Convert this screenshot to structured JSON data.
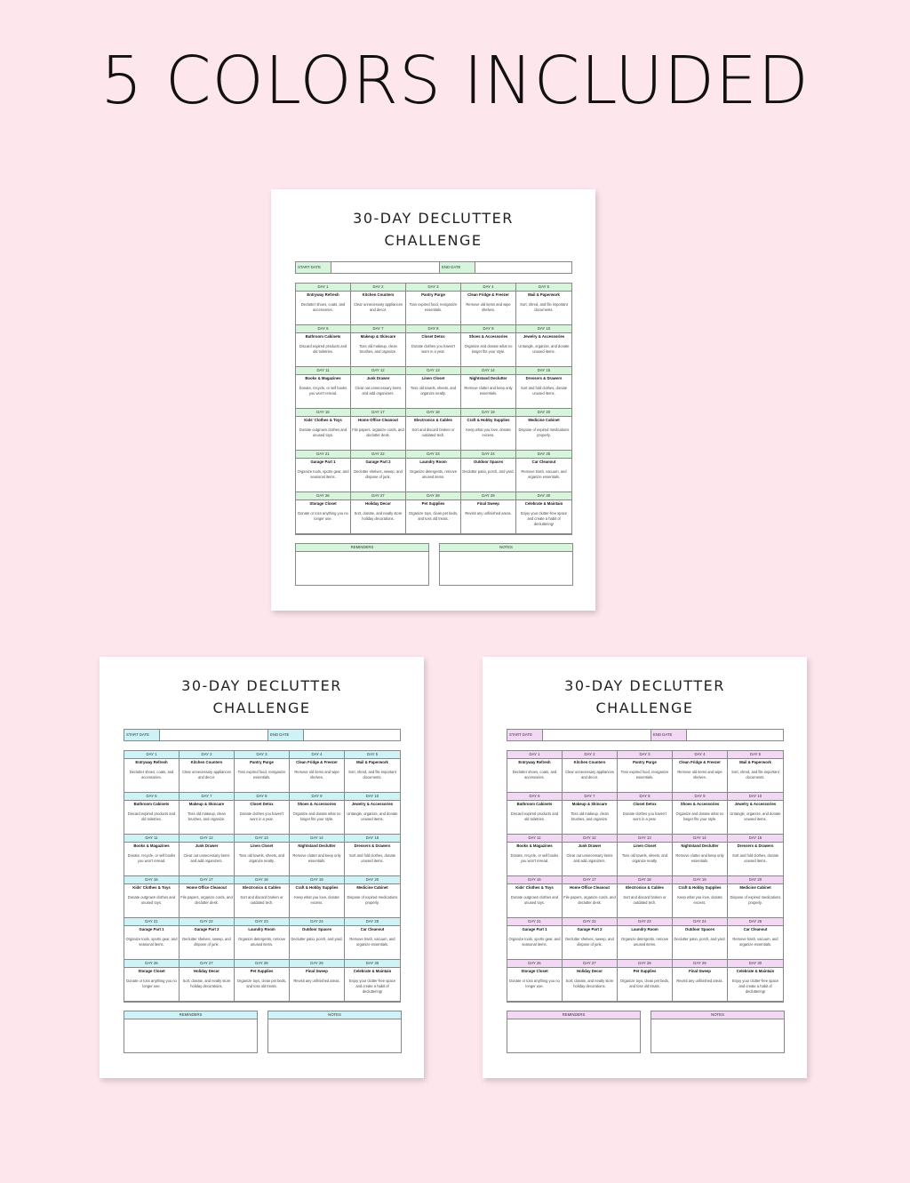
{
  "headline": "5 COLORS INCLUDED",
  "planner": {
    "title_line1": "30-DAY DECLUTTER",
    "title_line2": "CHALLENGE",
    "start_label": "START DATE",
    "end_label": "END DATE",
    "reminders_label": "REMINDERS",
    "notes_label": "NOTES",
    "days": [
      {
        "day": "DAY 1",
        "title": "Entryway Refresh",
        "desc": "Declutter shoes, coats, and accessories."
      },
      {
        "day": "DAY 2",
        "title": "Kitchen Counters",
        "desc": "Clear unnecessary appliances and decor."
      },
      {
        "day": "DAY 3",
        "title": "Pantry Purge",
        "desc": "Toss expired food, reorganize essentials."
      },
      {
        "day": "DAY 4",
        "title": "Clean Fridge & Freezer",
        "desc": "Remove old items and wipe shelves."
      },
      {
        "day": "DAY 5",
        "title": "Mail & Paperwork",
        "desc": "Sort, shred, and file important documents."
      },
      {
        "day": "DAY 6",
        "title": "Bathroom Cabinets",
        "desc": "Discard expired products and old toiletries."
      },
      {
        "day": "DAY 7",
        "title": "Makeup & Skincare",
        "desc": "Toss old makeup, clean brushes, and organize."
      },
      {
        "day": "DAY 8",
        "title": "Closet Detox",
        "desc": "Donate clothes you haven't worn in a year."
      },
      {
        "day": "DAY 9",
        "title": "Shoes & Accessories",
        "desc": "Organize and donate what no longer fits your style."
      },
      {
        "day": "DAY 10",
        "title": "Jewelry & Accessories",
        "desc": "Untangle, organize, and donate unused items."
      },
      {
        "day": "DAY 11",
        "title": "Books & Magazines",
        "desc": "Donate, recycle, or sell books you won't reread."
      },
      {
        "day": "DAY 12",
        "title": "Junk Drawer",
        "desc": "Clear out unnecessary items and add organizers."
      },
      {
        "day": "DAY 13",
        "title": "Linen Closet",
        "desc": "Toss old towels, sheets, and organize neatly."
      },
      {
        "day": "DAY 14",
        "title": "Nightstand Declutter",
        "desc": "Remove clutter and keep only essentials."
      },
      {
        "day": "DAY 15",
        "title": "Dressers & Drawers",
        "desc": "Sort and fold clothes, donate unused items."
      },
      {
        "day": "DAY 16",
        "title": "Kids' Clothes & Toys",
        "desc": "Donate outgrown clothes and unused toys."
      },
      {
        "day": "DAY 17",
        "title": "Home Office Cleanout",
        "desc": "File papers, organize cords, and declutter desk."
      },
      {
        "day": "DAY 18",
        "title": "Electronics & Cables",
        "desc": "Sort and discard broken or outdated tech."
      },
      {
        "day": "DAY 19",
        "title": "Craft & Hobby Supplies",
        "desc": "Keep what you love, donate excess."
      },
      {
        "day": "DAY 20",
        "title": "Medicine Cabinet",
        "desc": "Dispose of expired medications properly."
      },
      {
        "day": "DAY 21",
        "title": "Garage Part 1",
        "desc": "Organize tools, sports gear, and seasonal items."
      },
      {
        "day": "DAY 22",
        "title": "Garage Part 2",
        "desc": "Declutter shelves, sweep, and dispose of junk."
      },
      {
        "day": "DAY 23",
        "title": "Laundry Room",
        "desc": "Organize detergents, remove unused items."
      },
      {
        "day": "DAY 24",
        "title": "Outdoor Spaces",
        "desc": "Declutter patio, porch, and yard."
      },
      {
        "day": "DAY 25",
        "title": "Car Cleanout",
        "desc": "Remove trash, vacuum, and organize essentials."
      },
      {
        "day": "DAY 26",
        "title": "Storage Closet",
        "desc": "Donate or toss anything you no longer use."
      },
      {
        "day": "DAY 27",
        "title": "Holiday Decor",
        "desc": "Sort, donate, and neatly store holiday decorations."
      },
      {
        "day": "DAY 28",
        "title": "Pet Supplies",
        "desc": "Organize toys, clean pet beds, and toss old treats."
      },
      {
        "day": "DAY 29",
        "title": "Final Sweep",
        "desc": "Revisit any unfinished areas."
      },
      {
        "day": "DAY 30",
        "title": "Celebrate & Maintain",
        "desc": "Enjoy your clutter-free space and create a habit of decluttering!"
      }
    ]
  },
  "variants": [
    {
      "name": "green",
      "accent": "#d6f5da"
    },
    {
      "name": "blue",
      "accent": "#cdf3f7"
    },
    {
      "name": "purple",
      "accent": "#f3d8f6"
    }
  ],
  "colors": {
    "background": "#fde6ec"
  }
}
